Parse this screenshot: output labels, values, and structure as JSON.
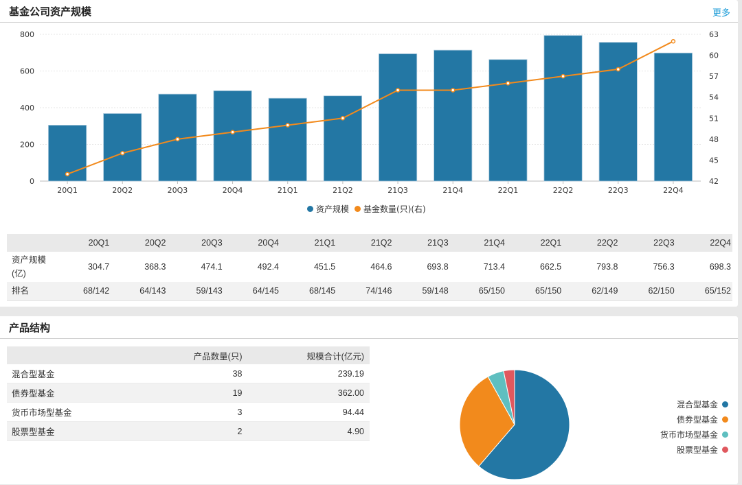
{
  "section1": {
    "title": "基金公司资产规模",
    "more_label": "更多"
  },
  "chart_data": [
    {
      "type": "bar+line",
      "title": "基金公司资产规模",
      "categories": [
        "20Q1",
        "20Q2",
        "20Q3",
        "20Q4",
        "21Q1",
        "21Q2",
        "21Q3",
        "21Q4",
        "22Q1",
        "22Q2",
        "22Q3",
        "22Q4"
      ],
      "series": [
        {
          "name": "资产规模",
          "type": "bar",
          "axis": "left",
          "color": "#2377a4",
          "values": [
            304.7,
            368.3,
            474.1,
            492.4,
            451.5,
            464.6,
            693.8,
            713.4,
            662.5,
            793.8,
            756.3,
            698.3
          ]
        },
        {
          "name": "基金数量(只)(右)",
          "type": "line",
          "axis": "right",
          "color": "#f28a1c",
          "values": [
            43,
            46,
            48,
            49,
            50,
            51,
            55,
            55,
            56,
            57,
            58,
            62
          ]
        }
      ],
      "left_axis": {
        "range": [
          0,
          800
        ],
        "ticks": [
          0,
          200,
          400,
          600,
          800
        ]
      },
      "right_axis": {
        "range": [
          42,
          63
        ],
        "ticks": [
          42,
          45,
          48,
          51,
          54,
          57,
          60,
          63
        ]
      },
      "grid": true,
      "legend_position": "bottom-center"
    },
    {
      "type": "pie",
      "title": "产品结构",
      "labels": [
        "混合型基金",
        "债券型基金",
        "货币市场型基金",
        "股票型基金"
      ],
      "values": [
        38,
        19,
        3,
        2
      ],
      "colors": [
        "#2377a4",
        "#f28a1c",
        "#5fbfc0",
        "#e0585e"
      ],
      "legend_position": "right"
    }
  ],
  "quarter_table": {
    "headers": [
      "",
      "20Q1",
      "20Q2",
      "20Q3",
      "20Q4",
      "21Q1",
      "21Q2",
      "21Q3",
      "21Q4",
      "22Q1",
      "22Q2",
      "22Q3",
      "22Q4"
    ],
    "rows": [
      {
        "label": "资产规模(亿)",
        "values": [
          "304.7",
          "368.3",
          "474.1",
          "492.4",
          "451.5",
          "464.6",
          "693.8",
          "713.4",
          "662.5",
          "793.8",
          "756.3",
          "698.3"
        ]
      },
      {
        "label": "排名",
        "values": [
          "68/142",
          "64/143",
          "59/143",
          "64/145",
          "68/145",
          "74/146",
          "59/148",
          "65/150",
          "65/150",
          "62/149",
          "62/150",
          "65/152"
        ]
      }
    ]
  },
  "section2": {
    "title": "产品结构",
    "table": {
      "headers": [
        "",
        "产品数量(只)",
        "规模合计(亿元)"
      ],
      "rows": [
        {
          "name": "混合型基金",
          "count": "38",
          "scale": "239.19"
        },
        {
          "name": "债券型基金",
          "count": "19",
          "scale": "362.00"
        },
        {
          "name": "货币市场型基金",
          "count": "3",
          "scale": "94.44"
        },
        {
          "name": "股票型基金",
          "count": "2",
          "scale": "4.90"
        }
      ]
    }
  }
}
